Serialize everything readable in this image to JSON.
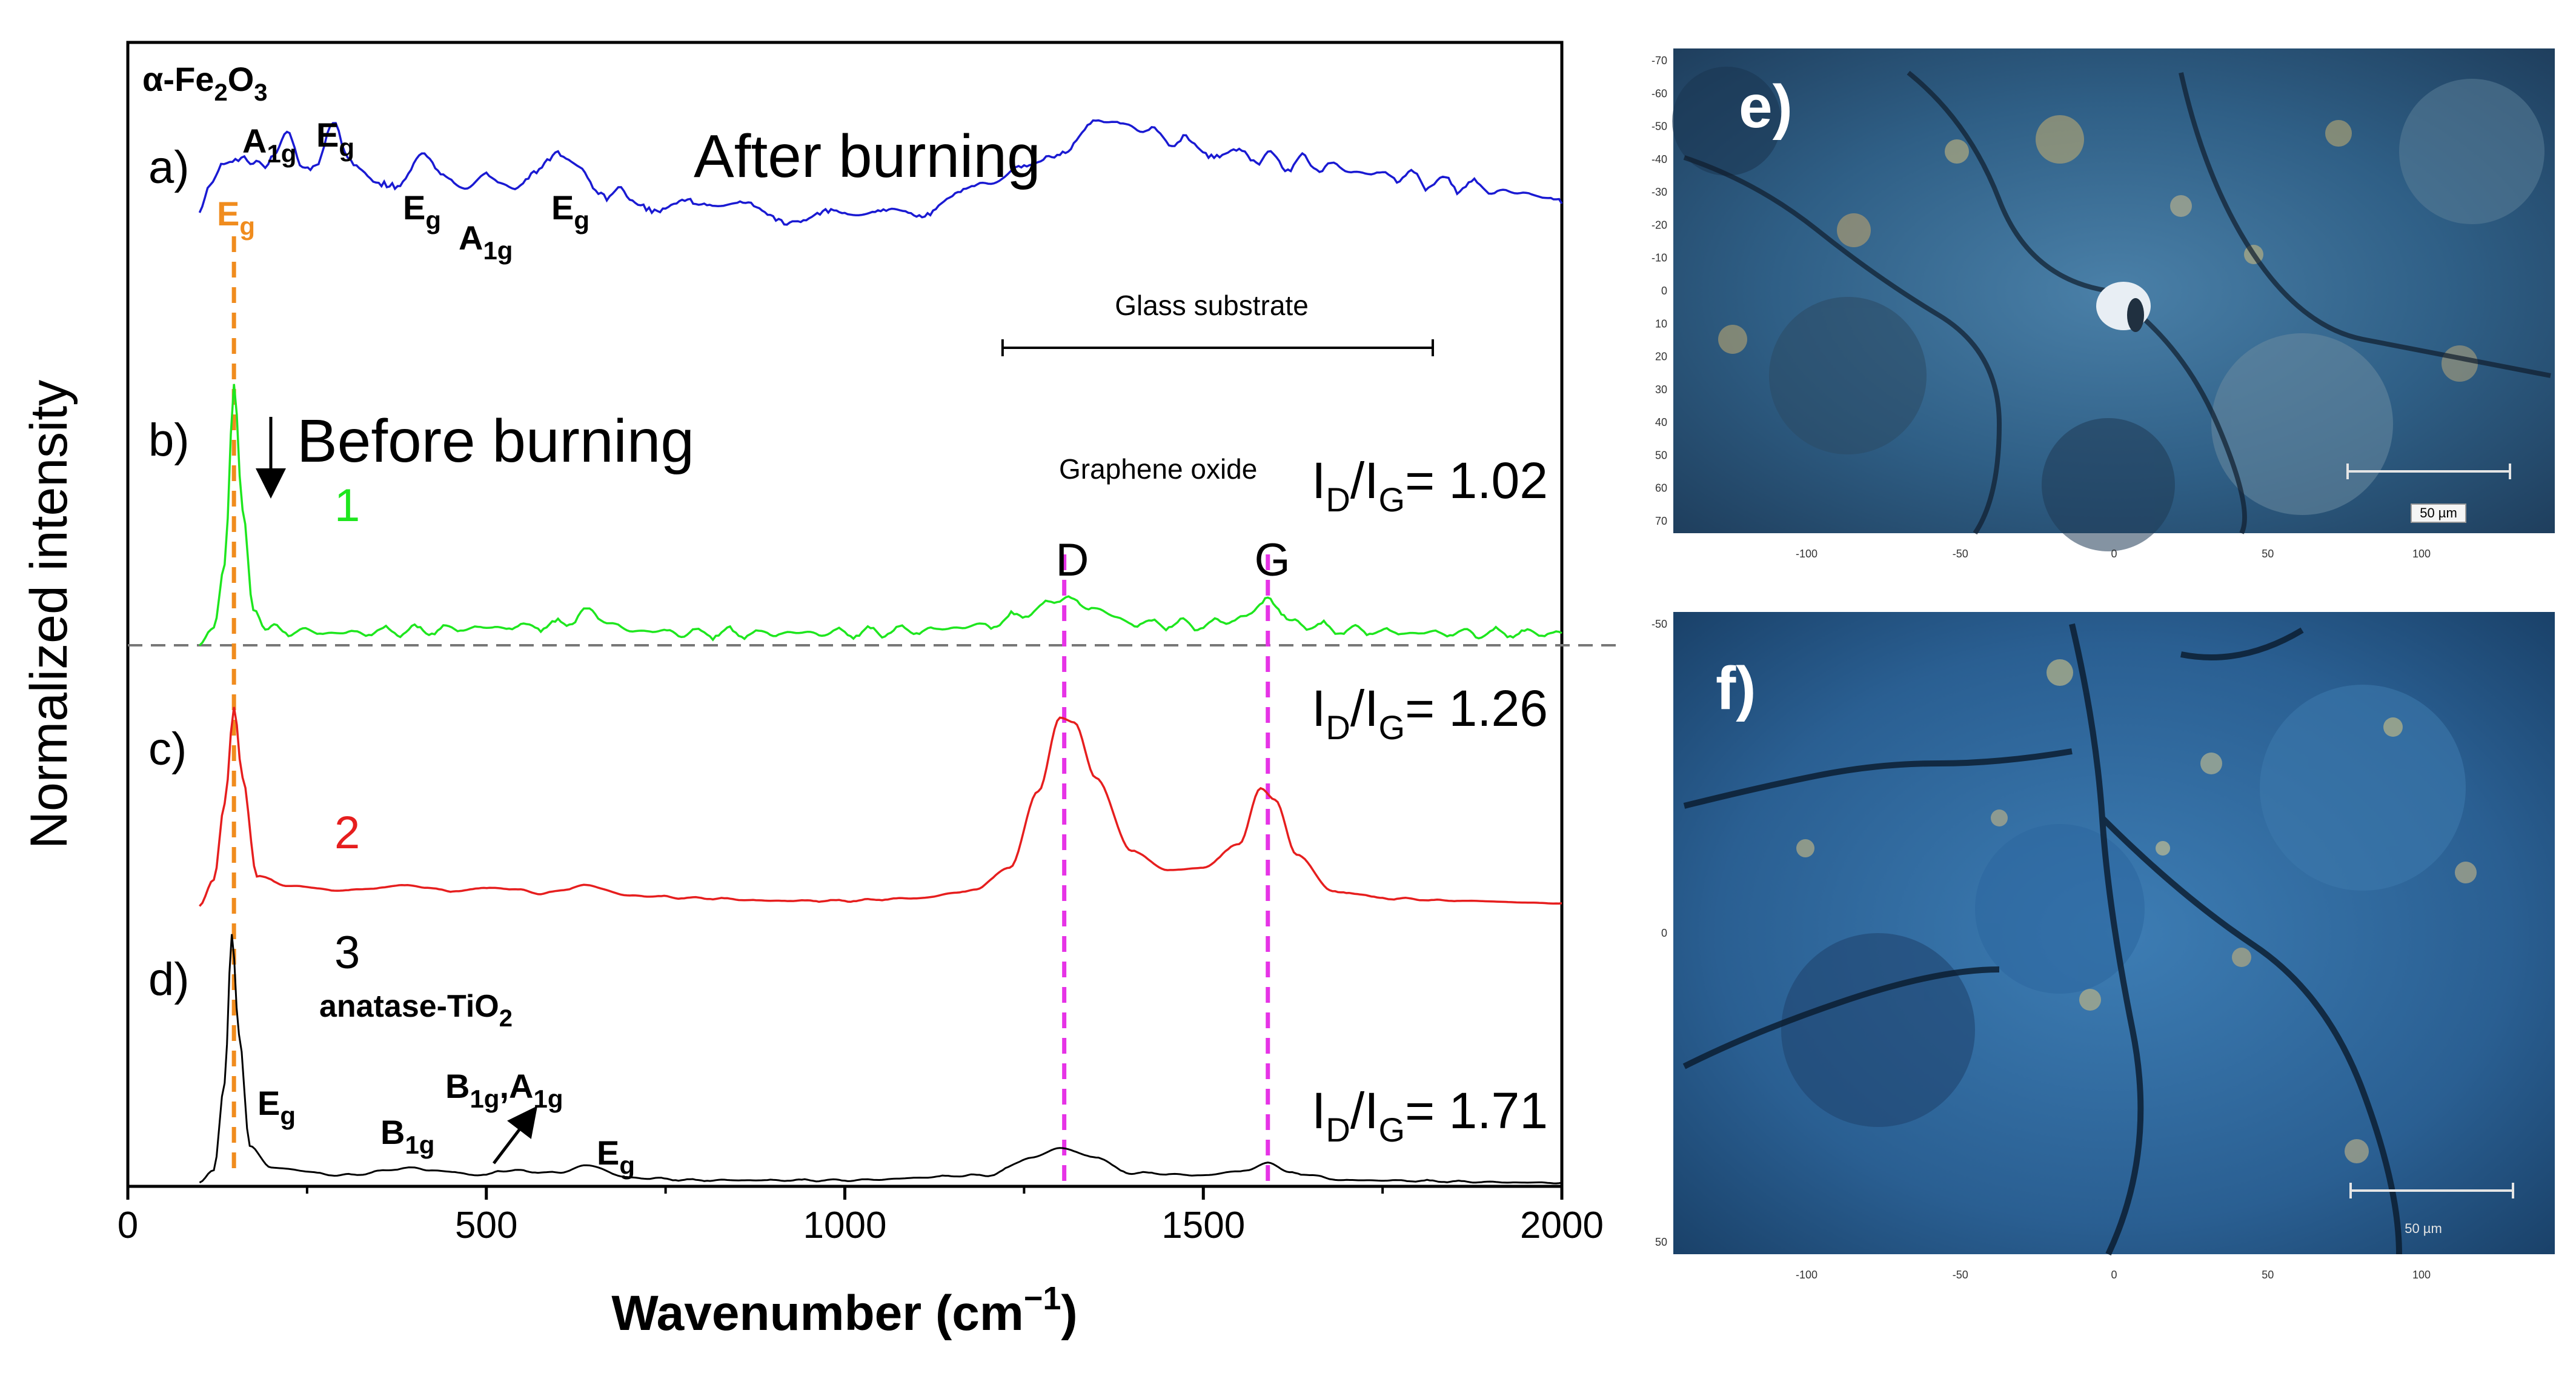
{
  "chart_data": {
    "type": "line",
    "xlabel": "Wavenumber (cm⁻¹)",
    "ylabel": "Normalized intensity",
    "xlim": [
      0,
      2000
    ],
    "xticks": [
      "0",
      "500",
      "1000",
      "1500",
      "2000"
    ],
    "title_material": "α-Fe₂O₃",
    "series": [
      {
        "panel": "a)",
        "name": "After burning",
        "color": "#1a1ad2",
        "points": [
          [
            100,
            0.62
          ],
          [
            115,
            0.72
          ],
          [
            130,
            0.78
          ],
          [
            150,
            0.86
          ],
          [
            175,
            0.82
          ],
          [
            200,
            0.84
          ],
          [
            222,
            0.96
          ],
          [
            240,
            0.82
          ],
          [
            262,
            0.84
          ],
          [
            290,
            0.98
          ],
          [
            315,
            0.8
          ],
          [
            350,
            0.78
          ],
          [
            380,
            0.76
          ],
          [
            410,
            0.86
          ],
          [
            440,
            0.76
          ],
          [
            470,
            0.72
          ],
          [
            500,
            0.78
          ],
          [
            540,
            0.72
          ],
          [
            570,
            0.76
          ],
          [
            600,
            0.84
          ],
          [
            630,
            0.82
          ],
          [
            660,
            0.72
          ],
          [
            700,
            0.68
          ],
          [
            750,
            0.66
          ],
          [
            800,
            0.64
          ],
          [
            850,
            0.66
          ],
          [
            900,
            0.62
          ],
          [
            950,
            0.6
          ],
          [
            1000,
            0.61
          ],
          [
            1050,
            0.62
          ],
          [
            1100,
            0.64
          ],
          [
            1150,
            0.68
          ],
          [
            1200,
            0.74
          ],
          [
            1250,
            0.8
          ],
          [
            1300,
            0.9
          ],
          [
            1350,
            0.98
          ],
          [
            1380,
            1.0
          ],
          [
            1420,
            0.96
          ],
          [
            1480,
            0.9
          ],
          [
            1550,
            0.86
          ],
          [
            1650,
            0.82
          ],
          [
            1750,
            0.78
          ],
          [
            1850,
            0.74
          ],
          [
            1950,
            0.7
          ],
          [
            2000,
            0.66
          ]
        ],
        "labels": [
          {
            "text": "E",
            "sub": "g",
            "x": 150,
            "color": "#f08c1e"
          },
          {
            "text": "A",
            "sub": "1g",
            "x": 222,
            "color": "#000000"
          },
          {
            "text": "E",
            "sub": "g",
            "x": 290,
            "color": "#000000"
          },
          {
            "text": "E",
            "sub": "g",
            "x": 410,
            "color": "#000000"
          },
          {
            "text": "A",
            "sub": "1g",
            "x": 490,
            "color": "#000000"
          },
          {
            "text": "E",
            "sub": "g",
            "x": 610,
            "color": "#000000"
          }
        ]
      },
      {
        "panel": "b)",
        "name": "1",
        "color": "#1ee61e",
        "condition": "Before burning",
        "ratio_label": "I",
        "ratio_sub_d": "D",
        "ratio_sep": "/I",
        "ratio_sub_g": "G",
        "ratio_value": "= 1.02",
        "points": [
          [
            100,
            0.0
          ],
          [
            120,
            0.05
          ],
          [
            135,
            0.3
          ],
          [
            148,
            1.0
          ],
          [
            160,
            0.5
          ],
          [
            175,
            0.12
          ],
          [
            200,
            0.05
          ],
          [
            300,
            0.04
          ],
          [
            400,
            0.05
          ],
          [
            500,
            0.06
          ],
          [
            600,
            0.07
          ],
          [
            640,
            0.12
          ],
          [
            700,
            0.05
          ],
          [
            800,
            0.04
          ],
          [
            900,
            0.04
          ],
          [
            1000,
            0.04
          ],
          [
            1100,
            0.05
          ],
          [
            1200,
            0.07
          ],
          [
            1260,
            0.12
          ],
          [
            1300,
            0.18
          ],
          [
            1340,
            0.14
          ],
          [
            1400,
            0.08
          ],
          [
            1500,
            0.07
          ],
          [
            1560,
            0.1
          ],
          [
            1590,
            0.15
          ],
          [
            1620,
            0.08
          ],
          [
            1700,
            0.05
          ],
          [
            1800,
            0.04
          ],
          [
            1900,
            0.04
          ],
          [
            2000,
            0.04
          ]
        ]
      },
      {
        "panel": "c)",
        "name": "2",
        "color": "#e61e1e",
        "ratio_label": "I",
        "ratio_sub_d": "D",
        "ratio_sep": "/I",
        "ratio_sub_g": "G",
        "ratio_value": "= 1.26",
        "points": [
          [
            100,
            0.0
          ],
          [
            120,
            0.1
          ],
          [
            135,
            0.4
          ],
          [
            148,
            0.78
          ],
          [
            160,
            0.5
          ],
          [
            180,
            0.12
          ],
          [
            220,
            0.08
          ],
          [
            300,
            0.06
          ],
          [
            390,
            0.08
          ],
          [
            450,
            0.06
          ],
          [
            520,
            0.07
          ],
          [
            580,
            0.05
          ],
          [
            640,
            0.08
          ],
          [
            700,
            0.04
          ],
          [
            800,
            0.03
          ],
          [
            900,
            0.02
          ],
          [
            1000,
            0.02
          ],
          [
            1100,
            0.03
          ],
          [
            1180,
            0.06
          ],
          [
            1230,
            0.15
          ],
          [
            1270,
            0.45
          ],
          [
            1300,
            0.74
          ],
          [
            1320,
            0.72
          ],
          [
            1350,
            0.5
          ],
          [
            1400,
            0.22
          ],
          [
            1450,
            0.14
          ],
          [
            1500,
            0.15
          ],
          [
            1550,
            0.24
          ],
          [
            1580,
            0.46
          ],
          [
            1600,
            0.42
          ],
          [
            1630,
            0.2
          ],
          [
            1680,
            0.06
          ],
          [
            1750,
            0.03
          ],
          [
            1850,
            0.02
          ],
          [
            2000,
            0.01
          ]
        ]
      },
      {
        "panel": "d)",
        "name": "3",
        "color": "#000000",
        "subtitle": "anatase-TiO₂",
        "ratio_label": "I",
        "ratio_sub_d": "D",
        "ratio_sep": "/I",
        "ratio_sub_g": "G",
        "ratio_value": "= 1.71",
        "points": [
          [
            100,
            0.0
          ],
          [
            120,
            0.05
          ],
          [
            135,
            0.4
          ],
          [
            145,
            1.0
          ],
          [
            155,
            0.6
          ],
          [
            170,
            0.15
          ],
          [
            200,
            0.06
          ],
          [
            300,
            0.03
          ],
          [
            400,
            0.06
          ],
          [
            420,
            0.05
          ],
          [
            500,
            0.03
          ],
          [
            520,
            0.05
          ],
          [
            600,
            0.04
          ],
          [
            640,
            0.07
          ],
          [
            700,
            0.02
          ],
          [
            800,
            0.01
          ],
          [
            1000,
            0.01
          ],
          [
            1200,
            0.03
          ],
          [
            1260,
            0.1
          ],
          [
            1300,
            0.14
          ],
          [
            1350,
            0.1
          ],
          [
            1400,
            0.04
          ],
          [
            1500,
            0.03
          ],
          [
            1560,
            0.05
          ],
          [
            1590,
            0.08
          ],
          [
            1620,
            0.04
          ],
          [
            1700,
            0.01
          ],
          [
            2000,
            0.0
          ]
        ],
        "labels": [
          {
            "text": "E",
            "sub": "g",
            "x": 210,
            "color": "#000000"
          },
          {
            "text": "B",
            "sub": "1g",
            "x": 400,
            "color": "#000000"
          },
          {
            "text": "B",
            "sub": "1g",
            "x": 510,
            "color": "#000000",
            "suffix": ",A",
            "sub2": "1g"
          },
          {
            "text": "E",
            "sub": "g",
            "x": 640,
            "color": "#000000"
          }
        ]
      }
    ],
    "vertical_markers": [
      {
        "x": 148,
        "color": "#f08c1e",
        "label": ""
      },
      {
        "x": 1306,
        "color": "#e633e6",
        "label": "D"
      },
      {
        "x": 1590,
        "color": "#e633e6",
        "label": "G"
      }
    ],
    "annotations": {
      "after_burning": "After burning",
      "before_burning": "Before burning",
      "graphene_oxide": "Graphene oxide",
      "glass_substrate": "Glass substrate",
      "glass_substrate_range": [
        1220,
        1820
      ]
    }
  },
  "micrographs": [
    {
      "panel": "e)",
      "x_ticks": [
        "-100",
        "-50",
        "0",
        "50",
        "100"
      ],
      "y_ticks": [
        "-70",
        "-60",
        "-50",
        "-40",
        "-30",
        "-20",
        "-10",
        "0",
        "10",
        "20",
        "30",
        "40",
        "50",
        "60",
        "70"
      ],
      "scale_label": "50 µm"
    },
    {
      "panel": "f)",
      "x_ticks": [
        "-100",
        "-50",
        "0",
        "50",
        "100"
      ],
      "y_ticks": [
        "-50",
        "0",
        "50"
      ],
      "scale_label": "50 µm"
    }
  ]
}
